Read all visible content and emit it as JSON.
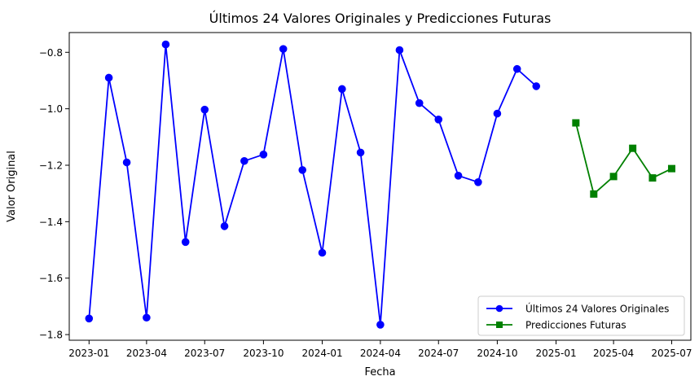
{
  "chart_data": {
    "type": "line",
    "title": "Últimos 24 Valores Originales y Predicciones Futuras",
    "xlabel": "Fecha",
    "ylabel": "Valor Original",
    "x_axis": {
      "kind": "date",
      "range": [
        "2022-12-01",
        "2025-07-31"
      ],
      "ticks": [
        "2023-01",
        "2023-04",
        "2023-07",
        "2023-10",
        "2024-01",
        "2024-04",
        "2024-07",
        "2024-10",
        "2025-01",
        "2025-04",
        "2025-07"
      ]
    },
    "y_axis": {
      "range": [
        -1.82,
        -0.73
      ],
      "ticks": [
        "−1.8",
        "−1.6",
        "−1.4",
        "−1.2",
        "−1.0",
        "−0.8"
      ],
      "tick_values": [
        -1.8,
        -1.6,
        -1.4,
        -1.2,
        -1.0,
        -0.8
      ]
    },
    "grid": false,
    "legend_position": "bottom-right",
    "series": [
      {
        "name": "Últimos 24 Valores Originales",
        "color": "#0000ff",
        "marker": "circle",
        "points": [
          {
            "x": "2023-01-01",
            "y": -1.743
          },
          {
            "x": "2023-02-01",
            "y": -0.89
          },
          {
            "x": "2023-03-01",
            "y": -1.19
          },
          {
            "x": "2023-04-01",
            "y": -1.74
          },
          {
            "x": "2023-05-01",
            "y": -0.772
          },
          {
            "x": "2023-06-01",
            "y": -1.472
          },
          {
            "x": "2023-07-01",
            "y": -1.003
          },
          {
            "x": "2023-08-01",
            "y": -1.416
          },
          {
            "x": "2023-09-01",
            "y": -1.185
          },
          {
            "x": "2023-10-01",
            "y": -1.162
          },
          {
            "x": "2023-11-01",
            "y": -0.788
          },
          {
            "x": "2023-12-01",
            "y": -1.217
          },
          {
            "x": "2024-01-01",
            "y": -1.51
          },
          {
            "x": "2024-02-01",
            "y": -0.93
          },
          {
            "x": "2024-03-01",
            "y": -1.155
          },
          {
            "x": "2024-04-01",
            "y": -1.765
          },
          {
            "x": "2024-05-01",
            "y": -0.792
          },
          {
            "x": "2024-06-01",
            "y": -0.98
          },
          {
            "x": "2024-07-01",
            "y": -1.038
          },
          {
            "x": "2024-08-01",
            "y": -1.237
          },
          {
            "x": "2024-09-01",
            "y": -1.26
          },
          {
            "x": "2024-10-01",
            "y": -1.017
          },
          {
            "x": "2024-11-01",
            "y": -0.859
          },
          {
            "x": "2024-12-01",
            "y": -0.92
          }
        ]
      },
      {
        "name": "Predicciones Futuras",
        "color": "#008000",
        "marker": "square",
        "points": [
          {
            "x": "2025-02-01",
            "y": -1.05
          },
          {
            "x": "2025-03-01",
            "y": -1.302
          },
          {
            "x": "2025-04-01",
            "y": -1.24
          },
          {
            "x": "2025-05-01",
            "y": -1.14
          },
          {
            "x": "2025-06-01",
            "y": -1.245
          },
          {
            "x": "2025-07-01",
            "y": -1.212
          }
        ]
      }
    ]
  }
}
